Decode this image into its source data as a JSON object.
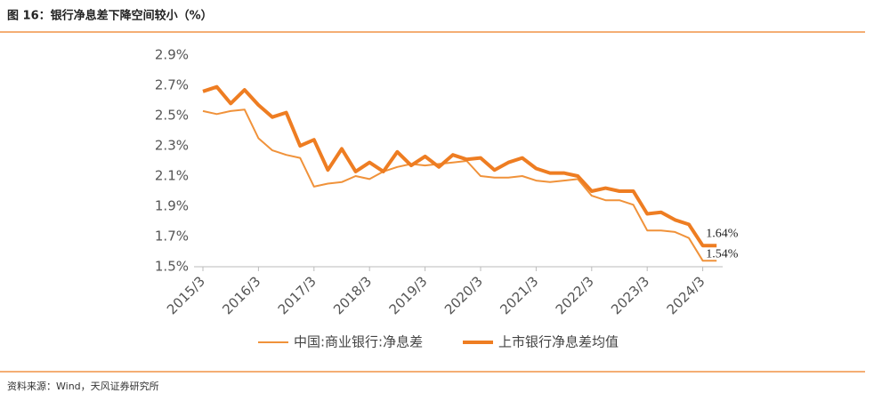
{
  "chart_data": {
    "type": "line",
    "title": "图 16：银行净息差下降空间较小（%）",
    "source": "资料来源：Wind，天风证券研究所",
    "categories": [
      "2015/3",
      null,
      null,
      null,
      "2016/3",
      null,
      null,
      null,
      "2017/3",
      null,
      null,
      null,
      "2018/3",
      null,
      null,
      null,
      "2019/3",
      null,
      null,
      null,
      "2020/3",
      null,
      null,
      null,
      "2021/3",
      null,
      null,
      null,
      "2022/3",
      null,
      null,
      null,
      "2023/3",
      null,
      null,
      null,
      "2024/3",
      null
    ],
    "series": [
      {
        "name": "中国:商业银行:净息差",
        "color": "#f0923a",
        "width": 2,
        "values": [
          2.53,
          2.51,
          2.53,
          2.54,
          2.35,
          2.27,
          2.24,
          2.22,
          2.03,
          2.05,
          2.06,
          2.1,
          2.08,
          2.13,
          2.16,
          2.18,
          2.17,
          2.18,
          2.19,
          2.2,
          2.1,
          2.09,
          2.09,
          2.1,
          2.07,
          2.06,
          2.07,
          2.08,
          1.97,
          1.94,
          1.94,
          1.91,
          1.74,
          1.74,
          1.73,
          1.69,
          1.54,
          1.54
        ],
        "value_labels": [
          null,
          null,
          null,
          null,
          null,
          null,
          null,
          null,
          null,
          null,
          null,
          null,
          null,
          null,
          null,
          null,
          null,
          null,
          null,
          null,
          null,
          null,
          null,
          null,
          null,
          null,
          null,
          null,
          null,
          null,
          null,
          null,
          null,
          null,
          null,
          null,
          null,
          "1.54%"
        ]
      },
      {
        "name": "上市银行净息差均值",
        "color": "#ee7d22",
        "width": 4,
        "values": [
          2.66,
          2.69,
          2.58,
          2.67,
          2.57,
          2.49,
          2.52,
          2.3,
          2.34,
          2.14,
          2.28,
          2.13,
          2.19,
          2.13,
          2.26,
          2.17,
          2.23,
          2.16,
          2.24,
          2.21,
          2.22,
          2.14,
          2.19,
          2.22,
          2.15,
          2.12,
          2.12,
          2.1,
          2.0,
          2.02,
          2.0,
          2.0,
          1.85,
          1.86,
          1.81,
          1.78,
          1.64,
          1.64
        ],
        "value_labels": [
          null,
          null,
          null,
          null,
          null,
          null,
          null,
          null,
          null,
          null,
          null,
          null,
          null,
          null,
          null,
          null,
          null,
          null,
          null,
          null,
          null,
          null,
          null,
          null,
          null,
          null,
          null,
          null,
          null,
          null,
          null,
          null,
          null,
          null,
          null,
          null,
          null,
          "1.64%"
        ]
      }
    ],
    "ylim": [
      1.5,
      2.9
    ],
    "yticks": [
      {
        "value": 1.5,
        "label": "1.5%"
      },
      {
        "value": 1.7,
        "label": "1.7%"
      },
      {
        "value": 1.9,
        "label": "1.9%"
      },
      {
        "value": 2.1,
        "label": "2.1%"
      },
      {
        "value": 2.3,
        "label": "2.3%"
      },
      {
        "value": 2.5,
        "label": "2.5%"
      },
      {
        "value": 2.7,
        "label": "2.7%"
      },
      {
        "value": 2.9,
        "label": "2.9%"
      }
    ],
    "grid": false,
    "legend": "bottom"
  }
}
